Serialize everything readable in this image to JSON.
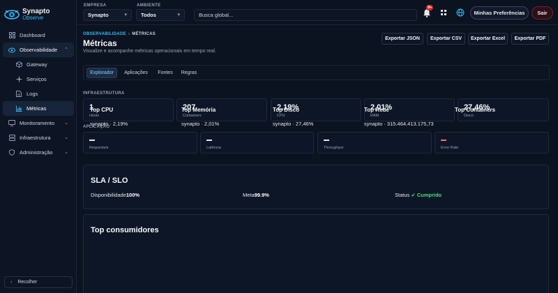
{
  "brand": {
    "name_line1": "Synapto",
    "name_line2": "Observe",
    "accent": "#38bdf8"
  },
  "sidebar": {
    "items": [
      {
        "label": "Dashboard",
        "icon": "grid-icon"
      },
      {
        "label": "Observabilidade",
        "icon": "eye-icon",
        "expanded": true
      },
      {
        "label": "Gateway",
        "icon": "cube-icon"
      },
      {
        "label": "Serviços",
        "icon": "nodes-icon"
      },
      {
        "label": "Logs",
        "icon": "file-icon"
      },
      {
        "label": "Métricas",
        "icon": "bar-chart-icon",
        "selected": true
      },
      {
        "label": "Monitoramento",
        "icon": "monitor-icon"
      },
      {
        "label": "Infraestrutura",
        "icon": "server-icon"
      },
      {
        "label": "Administração",
        "icon": "shield-icon"
      }
    ],
    "collapse_label": "Recolher"
  },
  "topbar": {
    "empresa_label": "EMPRESA",
    "empresa_value": "Synapto",
    "ambiente_label": "AMBIENTE",
    "ambiente_value": "Todos",
    "search_placeholder": "Busca global...",
    "notif_count": "9+",
    "prefs_label": "Minhas Preferências",
    "logout_label": "Sair"
  },
  "page": {
    "breadcrumb_root": "OBSERVABILIDADE",
    "breadcrumb_sep": "›",
    "breadcrumb_current": "MÉTRICAS",
    "title": "Métricas",
    "subtitle": "Visualize e acompanhe métricas operacionais em tempo real.",
    "exports": [
      "Exportar JSON",
      "Exportar CSV",
      "Exportar Excel",
      "Exportar PDF"
    ],
    "tabs": [
      "Explorador",
      "Aplicações",
      "Fontes",
      "Regras"
    ],
    "active_tab": "Explorador"
  },
  "infra": {
    "label": "INFRAESTRUTURA",
    "cards": [
      {
        "value": "1",
        "label": "Hosts"
      },
      {
        "value": "207",
        "label": "Containers"
      },
      {
        "value": "2,19%",
        "label": "CPU"
      },
      {
        "value": "2,01%",
        "label": "RAM"
      },
      {
        "value": "27,46%",
        "label": "Disco"
      }
    ]
  },
  "app": {
    "label": "APLICAÇÃO",
    "cards": [
      {
        "label": "Requests/s"
      },
      {
        "label": "Latência"
      },
      {
        "label": "Throughput"
      },
      {
        "label": "Error Rate"
      }
    ]
  },
  "sla": {
    "title": "SLA / SLO",
    "availability_label": "Disponibilidade",
    "availability_value": "100%",
    "goal_label": "Meta",
    "goal_value": "99.9%",
    "status_label": "Status",
    "status_value": "✔ Cumprido",
    "status_color": "#4ade80"
  },
  "top": {
    "title": "Top consumidores",
    "columns": [
      {
        "head": "Top CPU",
        "value": "synapto · 2,19%"
      },
      {
        "head": "Top Memória",
        "value": "synapto · 2,01%"
      },
      {
        "head": "Top Disco",
        "value": "synapto · 27,46%"
      },
      {
        "head": "Top Rede",
        "value": "synapto · 315.464.413.175,73"
      },
      {
        "head": "Top Containers",
        "value": ""
      }
    ]
  }
}
